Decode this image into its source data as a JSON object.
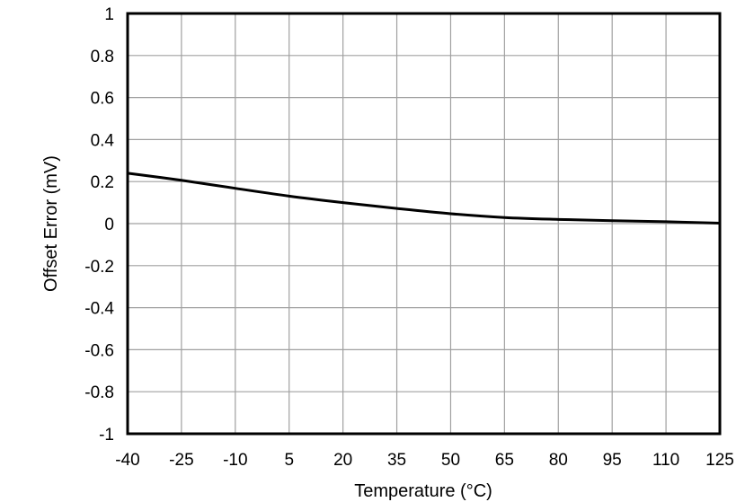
{
  "chart_data": {
    "type": "line",
    "title": "",
    "xlabel": "Temperature (°C)",
    "ylabel": "Offset Error (mV)",
    "xlim": [
      -40,
      125
    ],
    "ylim": [
      -1,
      1
    ],
    "grid": true,
    "legend": null,
    "x_ticks": [
      -40,
      -25,
      -10,
      5,
      20,
      35,
      50,
      65,
      80,
      95,
      110,
      125
    ],
    "x_tick_labels": [
      "-40",
      "-25",
      "-10",
      "5",
      "20",
      "35",
      "50",
      "65",
      "80",
      "95",
      "110",
      "125"
    ],
    "y_ticks": [
      1,
      0.8,
      0.6,
      0.4,
      0.2,
      0,
      -0.2,
      -0.4,
      -0.6,
      -0.8,
      -1
    ],
    "y_tick_labels": [
      "1",
      "0.8",
      "0.6",
      "0.4",
      "0.2",
      "0",
      "-0.2",
      "-0.4",
      "-0.6",
      "-0.8",
      "-1"
    ],
    "series": [
      {
        "name": "Offset Error",
        "color": "#000000",
        "x": [
          -40,
          -25,
          -10,
          5,
          20,
          35,
          50,
          65,
          80,
          95,
          110,
          125
        ],
        "values": [
          0.24,
          0.206,
          0.168,
          0.131,
          0.1,
          0.072,
          0.047,
          0.029,
          0.02,
          0.014,
          0.009,
          0.002
        ]
      }
    ]
  },
  "style": {
    "frame_color": "#000000",
    "grid_color": "#a0a0a0",
    "background": "#ffffff"
  }
}
